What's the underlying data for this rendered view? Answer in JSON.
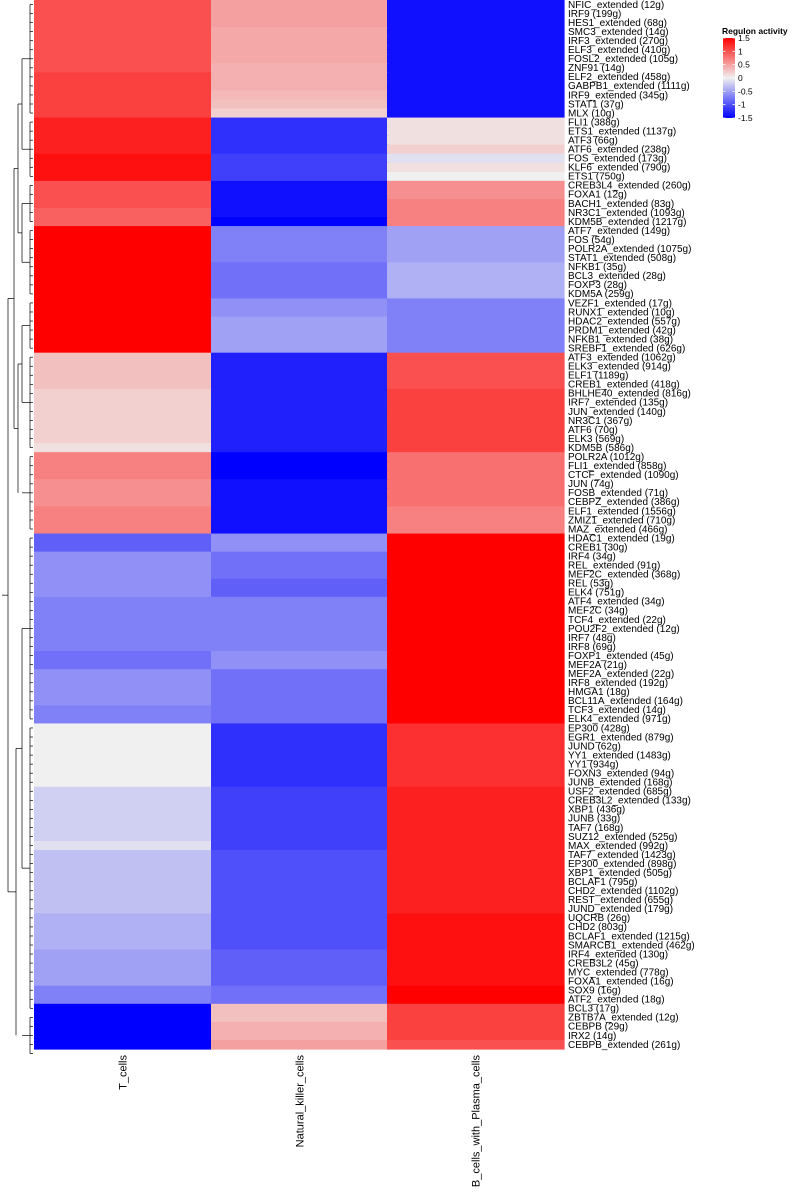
{
  "chart_data": {
    "type": "heatmap",
    "columns": [
      "T_cells",
      "Natural_killer_cells",
      "B_cells_with_Plasma_cells"
    ],
    "legend": {
      "title": "Regulon activity",
      "ticks": [
        "1.5",
        "1",
        "0.5",
        "0",
        "-0.5",
        "-1",
        "-1.5"
      ],
      "range": [
        -1.5,
        1.5
      ],
      "color_low": "#0000ff",
      "color_mid": "#f0f0f0",
      "color_high": "#ff0000"
    },
    "rows": [
      {
        "name": "NFIC_extended (12g)",
        "values": [
          1.0,
          0.5,
          -1.4
        ]
      },
      {
        "name": "IRF9 (199g)",
        "values": [
          1.0,
          0.5,
          -1.4
        ]
      },
      {
        "name": "HES1_extended (68g)",
        "values": [
          1.0,
          0.5,
          -1.4
        ]
      },
      {
        "name": "SMC3_extended (14g)",
        "values": [
          1.0,
          0.45,
          -1.4
        ]
      },
      {
        "name": "IRF3_extended (270g)",
        "values": [
          1.0,
          0.45,
          -1.4
        ]
      },
      {
        "name": "ELF3_extended (410g)",
        "values": [
          1.0,
          0.45,
          -1.4
        ]
      },
      {
        "name": "FOSL2_extended (105g)",
        "values": [
          1.0,
          0.45,
          -1.4
        ]
      },
      {
        "name": "ZNF91 (14g)",
        "values": [
          1.0,
          0.4,
          -1.4
        ]
      },
      {
        "name": "ELF2_extended (458g)",
        "values": [
          1.1,
          0.4,
          -1.4
        ]
      },
      {
        "name": "GABPB1_extended (1111g)",
        "values": [
          1.1,
          0.4,
          -1.4
        ]
      },
      {
        "name": "IRF9_extended (345g)",
        "values": [
          1.1,
          0.35,
          -1.4
        ]
      },
      {
        "name": "STAT1 (37g)",
        "values": [
          1.1,
          0.3,
          -1.4
        ]
      },
      {
        "name": "MLX (10g)",
        "values": [
          1.1,
          0.2,
          -1.4
        ]
      },
      {
        "name": "FLI1 (388g)",
        "values": [
          1.3,
          -1.2,
          0.1
        ]
      },
      {
        "name": "ETS1_extended (1137g)",
        "values": [
          1.3,
          -1.2,
          0.1
        ]
      },
      {
        "name": "ATF3 (66g)",
        "values": [
          1.3,
          -1.2,
          0.1
        ]
      },
      {
        "name": "ATF6_extended (238g)",
        "values": [
          1.3,
          -1.2,
          0.2
        ]
      },
      {
        "name": "FOS_extended (173g)",
        "values": [
          1.4,
          -1.1,
          -0.1
        ]
      },
      {
        "name": "KLF6_extended (790g)",
        "values": [
          1.4,
          -1.1,
          0.1
        ]
      },
      {
        "name": "ETS1 (750g)",
        "values": [
          1.4,
          -1.1,
          0.0
        ]
      },
      {
        "name": "CREB3L4_extended (260g)",
        "values": [
          1.0,
          -1.4,
          0.6
        ]
      },
      {
        "name": "FOXA1 (12g)",
        "values": [
          1.0,
          -1.4,
          0.6
        ]
      },
      {
        "name": "BACH1_extended (83g)",
        "values": [
          1.0,
          -1.4,
          0.7
        ]
      },
      {
        "name": "NR3C1_extended (1093g)",
        "values": [
          0.9,
          -1.4,
          0.7
        ]
      },
      {
        "name": "KDM5B_extended (1217g)",
        "values": [
          0.9,
          -1.5,
          0.7
        ]
      },
      {
        "name": "ATF7_extended (149g)",
        "values": [
          1.5,
          -0.7,
          -0.5
        ]
      },
      {
        "name": "FOS (54g)",
        "values": [
          1.5,
          -0.7,
          -0.5
        ]
      },
      {
        "name": "POLR2A_extended (1075g)",
        "values": [
          1.5,
          -0.7,
          -0.5
        ]
      },
      {
        "name": "STAT1_extended (508g)",
        "values": [
          1.5,
          -0.7,
          -0.5
        ]
      },
      {
        "name": "NFKB1 (35g)",
        "values": [
          1.5,
          -0.8,
          -0.4
        ]
      },
      {
        "name": "BCL3_extended (28g)",
        "values": [
          1.5,
          -0.8,
          -0.4
        ]
      },
      {
        "name": "FOXP3 (28g)",
        "values": [
          1.5,
          -0.8,
          -0.4
        ]
      },
      {
        "name": "KDM5A (259g)",
        "values": [
          1.5,
          -0.8,
          -0.4
        ]
      },
      {
        "name": "VEZF1_extended (17g)",
        "values": [
          1.5,
          -0.6,
          -0.7
        ]
      },
      {
        "name": "RUNX1_extended (10g)",
        "values": [
          1.5,
          -0.6,
          -0.7
        ]
      },
      {
        "name": "HDAC2_extended (557g)",
        "values": [
          1.5,
          -0.5,
          -0.7
        ]
      },
      {
        "name": "PRDM1_extended (42g)",
        "values": [
          1.5,
          -0.5,
          -0.7
        ]
      },
      {
        "name": "NFKB1_extended (38g)",
        "values": [
          1.5,
          -0.5,
          -0.7
        ]
      },
      {
        "name": "SREBF1_extended (626g)",
        "values": [
          1.5,
          -0.5,
          -0.7
        ]
      },
      {
        "name": "ATF3_extended (1062g)",
        "values": [
          0.3,
          -1.3,
          1.0
        ]
      },
      {
        "name": "ELK3_extended (914g)",
        "values": [
          0.3,
          -1.3,
          1.0
        ]
      },
      {
        "name": "ELF1 (1189g)",
        "values": [
          0.3,
          -1.3,
          1.0
        ]
      },
      {
        "name": "CREB1_extended (418g)",
        "values": [
          0.3,
          -1.3,
          1.0
        ]
      },
      {
        "name": "BHLHE40_extended (816g)",
        "values": [
          0.2,
          -1.3,
          1.1
        ]
      },
      {
        "name": "IRF7_extended (135g)",
        "values": [
          0.2,
          -1.3,
          1.1
        ]
      },
      {
        "name": "JUN_extended (140g)",
        "values": [
          0.2,
          -1.3,
          1.1
        ]
      },
      {
        "name": "NR3C1 (367g)",
        "values": [
          0.2,
          -1.3,
          1.1
        ]
      },
      {
        "name": "ATF6 (70g)",
        "values": [
          0.2,
          -1.3,
          1.1
        ]
      },
      {
        "name": "ELK3 (569g)",
        "values": [
          0.2,
          -1.3,
          1.1
        ]
      },
      {
        "name": "KDM5B (586g)",
        "values": [
          0.1,
          -1.3,
          1.1
        ]
      },
      {
        "name": "POLR2A (1012g)",
        "values": [
          0.7,
          -1.5,
          0.8
        ]
      },
      {
        "name": "FLI1_extended (858g)",
        "values": [
          0.7,
          -1.5,
          0.8
        ]
      },
      {
        "name": "CTCF_extended (1090g)",
        "values": [
          0.7,
          -1.5,
          0.8
        ]
      },
      {
        "name": "JUN (74g)",
        "values": [
          0.6,
          -1.4,
          0.8
        ]
      },
      {
        "name": "FOSB_extended (71g)",
        "values": [
          0.6,
          -1.4,
          0.8
        ]
      },
      {
        "name": "CEBPZ_extended (386g)",
        "values": [
          0.6,
          -1.4,
          0.8
        ]
      },
      {
        "name": "ELF1_extended (1556g)",
        "values": [
          0.7,
          -1.4,
          0.7
        ]
      },
      {
        "name": "ZMIZ1_extended (710g)",
        "values": [
          0.7,
          -1.4,
          0.7
        ]
      },
      {
        "name": "MAZ_extended (466g)",
        "values": [
          0.7,
          -1.4,
          0.7
        ]
      },
      {
        "name": "HDAC1_extended (19g)",
        "values": [
          -0.9,
          -0.6,
          1.5
        ]
      },
      {
        "name": "CREB1 (30g)",
        "values": [
          -0.9,
          -0.6,
          1.5
        ]
      },
      {
        "name": "IRF4 (34g)",
        "values": [
          -0.6,
          -0.8,
          1.5
        ]
      },
      {
        "name": "REL_extended (91g)",
        "values": [
          -0.6,
          -0.8,
          1.5
        ]
      },
      {
        "name": "MEF2C_extended (368g)",
        "values": [
          -0.6,
          -0.8,
          1.5
        ]
      },
      {
        "name": "REL (53g)",
        "values": [
          -0.6,
          -0.9,
          1.5
        ]
      },
      {
        "name": "ELK4 (751g)",
        "values": [
          -0.6,
          -0.9,
          1.5
        ]
      },
      {
        "name": "ATF4_extended (34g)",
        "values": [
          -0.7,
          -0.7,
          1.5
        ]
      },
      {
        "name": "MEF2C (34g)",
        "values": [
          -0.7,
          -0.7,
          1.5
        ]
      },
      {
        "name": "TCF4_extended (22g)",
        "values": [
          -0.7,
          -0.7,
          1.5
        ]
      },
      {
        "name": "POU2F2_extended (12g)",
        "values": [
          -0.7,
          -0.7,
          1.5
        ]
      },
      {
        "name": "IRF7 (48g)",
        "values": [
          -0.7,
          -0.7,
          1.5
        ]
      },
      {
        "name": "IRF8 (69g)",
        "values": [
          -0.7,
          -0.7,
          1.5
        ]
      },
      {
        "name": "FOXP1_extended (45g)",
        "values": [
          -0.8,
          -0.6,
          1.5
        ]
      },
      {
        "name": "MEF2A (21g)",
        "values": [
          -0.8,
          -0.6,
          1.5
        ]
      },
      {
        "name": "MEF2A_extended (22g)",
        "values": [
          -0.6,
          -0.8,
          1.5
        ]
      },
      {
        "name": "IRF8_extended (192g)",
        "values": [
          -0.6,
          -0.8,
          1.5
        ]
      },
      {
        "name": "HMGA1 (18g)",
        "values": [
          -0.6,
          -0.8,
          1.5
        ]
      },
      {
        "name": "BCL11A_extended (164g)",
        "values": [
          -0.6,
          -0.8,
          1.5
        ]
      },
      {
        "name": "TCF3_extended (14g)",
        "values": [
          -0.7,
          -0.8,
          1.5
        ]
      },
      {
        "name": "ELK4_extended (971g)",
        "values": [
          -0.7,
          -0.8,
          1.5
        ]
      },
      {
        "name": "EP300 (428g)",
        "values": [
          0.0,
          -1.2,
          1.2
        ]
      },
      {
        "name": "EGR1_extended (879g)",
        "values": [
          0.0,
          -1.2,
          1.2
        ]
      },
      {
        "name": "JUND (62g)",
        "values": [
          0.0,
          -1.2,
          1.2
        ]
      },
      {
        "name": "YY1_extended (1483g)",
        "values": [
          0.0,
          -1.2,
          1.2
        ]
      },
      {
        "name": "YY1 (934g)",
        "values": [
          0.0,
          -1.2,
          1.2
        ]
      },
      {
        "name": "FOXN3_extended (94g)",
        "values": [
          0.0,
          -1.2,
          1.2
        ]
      },
      {
        "name": "JUNB_extended (168g)",
        "values": [
          0.0,
          -1.2,
          1.2
        ]
      },
      {
        "name": "USF2_extended (685g)",
        "values": [
          -0.2,
          -1.1,
          1.3
        ]
      },
      {
        "name": "CREB3L2_extended (133g)",
        "values": [
          -0.2,
          -1.1,
          1.3
        ]
      },
      {
        "name": "XBP1 (436g)",
        "values": [
          -0.2,
          -1.1,
          1.3
        ]
      },
      {
        "name": "JUNB (33g)",
        "values": [
          -0.2,
          -1.1,
          1.3
        ]
      },
      {
        "name": "TAF7 (168g)",
        "values": [
          -0.2,
          -1.1,
          1.3
        ]
      },
      {
        "name": "SUZ12_extended (525g)",
        "values": [
          -0.2,
          -1.1,
          1.3
        ]
      },
      {
        "name": "MAX_extended (992g)",
        "values": [
          -0.1,
          -1.1,
          1.3
        ]
      },
      {
        "name": "TAF7_extended (1423g)",
        "values": [
          -0.3,
          -1.0,
          1.3
        ]
      },
      {
        "name": "EP300_extended (898g)",
        "values": [
          -0.3,
          -1.0,
          1.3
        ]
      },
      {
        "name": "XBP1_extended (505g)",
        "values": [
          -0.3,
          -1.0,
          1.3
        ]
      },
      {
        "name": "BCLAF1 (795g)",
        "values": [
          -0.3,
          -1.0,
          1.3
        ]
      },
      {
        "name": "CHD2_extended (1102g)",
        "values": [
          -0.3,
          -1.0,
          1.3
        ]
      },
      {
        "name": "REST_extended (655g)",
        "values": [
          -0.3,
          -1.0,
          1.3
        ]
      },
      {
        "name": "JUND_extended (179g)",
        "values": [
          -0.3,
          -1.0,
          1.3
        ]
      },
      {
        "name": "UQCRB (26g)",
        "values": [
          -0.4,
          -1.0,
          1.4
        ]
      },
      {
        "name": "CHD2 (803g)",
        "values": [
          -0.4,
          -1.0,
          1.4
        ]
      },
      {
        "name": "BCLAF1_extended (1215g)",
        "values": [
          -0.4,
          -1.0,
          1.4
        ]
      },
      {
        "name": "SMARCB1_extended (462g)",
        "values": [
          -0.4,
          -1.0,
          1.4
        ]
      },
      {
        "name": "IRF4_extended (130g)",
        "values": [
          -0.5,
          -0.9,
          1.4
        ]
      },
      {
        "name": "CREB3L2 (45g)",
        "values": [
          -0.5,
          -0.9,
          1.4
        ]
      },
      {
        "name": "MYC_extended (778g)",
        "values": [
          -0.5,
          -0.9,
          1.4
        ]
      },
      {
        "name": "FOXA1_extended (16g)",
        "values": [
          -0.5,
          -0.9,
          1.4
        ]
      },
      {
        "name": "SOX9 (16g)",
        "values": [
          -0.7,
          -0.8,
          1.5
        ]
      },
      {
        "name": "ATF2_extended (18g)",
        "values": [
          -0.7,
          -0.8,
          1.5
        ]
      },
      {
        "name": "BCL3 (17g)",
        "values": [
          -1.5,
          0.3,
          1.1
        ]
      },
      {
        "name": "ZBTB7A_extended (12g)",
        "values": [
          -1.5,
          0.3,
          1.1
        ]
      },
      {
        "name": "CEBPB (29g)",
        "values": [
          -1.5,
          0.4,
          1.1
        ]
      },
      {
        "name": "IRX2 (14g)",
        "values": [
          -1.5,
          0.4,
          1.1
        ]
      },
      {
        "name": "CEBPB_extended (261g)",
        "values": [
          -1.5,
          0.5,
          1.0
        ]
      }
    ]
  }
}
